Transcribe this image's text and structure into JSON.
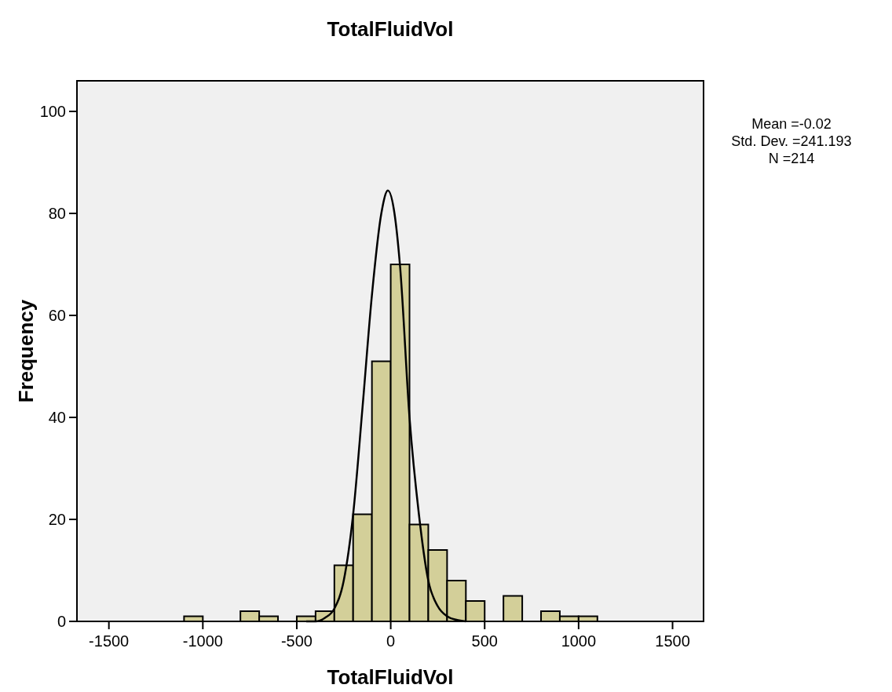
{
  "chart_data": {
    "type": "histogram",
    "title": "TotalFluidVol",
    "xlabel": "TotalFluidVol",
    "ylabel": "Frequency",
    "bins": [
      -1100,
      -1000,
      -900,
      -800,
      -700,
      -600,
      -500,
      -400,
      -300,
      -200,
      -100,
      0,
      100,
      200,
      300,
      400,
      500,
      600,
      700,
      800,
      900,
      1000,
      1100
    ],
    "values": [
      1,
      0,
      0,
      2,
      1,
      0,
      1,
      2,
      11,
      21,
      51,
      70,
      19,
      14,
      8,
      4,
      0,
      5,
      0,
      2,
      1,
      1
    ],
    "color": "#d3cf99",
    "series": [
      {
        "type": "line",
        "color": "#000000",
        "x": [
          -450,
          -400,
          -350,
          -300,
          -250,
          -200,
          -150,
          -100,
          -50,
          -15,
          20,
          50,
          100,
          150,
          200,
          250,
          300,
          350,
          400
        ],
        "values": [
          0,
          0,
          0.7,
          2.5,
          8,
          21,
          42,
          64,
          80,
          84.5,
          80,
          69.5,
          40,
          21,
          8,
          3,
          1,
          0.3,
          0
        ]
      }
    ],
    "xlim": [
      -1670,
      1665
    ],
    "xticks": [
      -1500,
      -1000,
      -500,
      0,
      500,
      1000,
      1500
    ],
    "ylim": [
      0,
      106
    ],
    "yticks": [
      0,
      20,
      40,
      60,
      80,
      100
    ],
    "grid": false,
    "annotations": [
      "Mean =-0.02",
      "Std. Dev. =241.193",
      "N =214"
    ]
  }
}
